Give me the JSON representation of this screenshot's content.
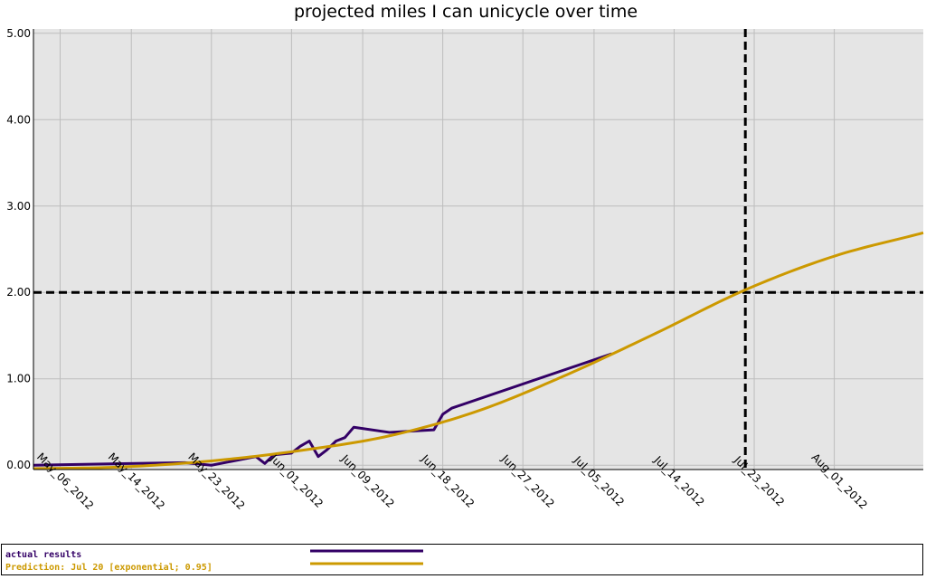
{
  "chart_data": {
    "type": "line",
    "title": "projected miles I can unicycle over time",
    "xlabel": "",
    "ylabel": "",
    "xlim": [
      "2012-05-03",
      "2012-08-11"
    ],
    "ylim": [
      -0.05,
      5.05
    ],
    "yticks": [
      0,
      1,
      2,
      3,
      4,
      5
    ],
    "ytick_labels": [
      "0.00",
      "1.00",
      "2.00",
      "3.00",
      "4.00",
      "5.00"
    ],
    "xticks": [
      "2012-05-06",
      "2012-05-14",
      "2012-05-23",
      "2012-06-01",
      "2012-06-09",
      "2012-06-18",
      "2012-06-27",
      "2012-07-05",
      "2012-07-14",
      "2012-07-23",
      "2012-08-01"
    ],
    "xtick_labels": [
      "May_06_2012",
      "May_14_2012",
      "May_23_2012",
      "Jun_01_2012",
      "Jun_09_2012",
      "Jun_18_2012",
      "Jun_27_2012",
      "Jul_05_2012",
      "Jul_14_2012",
      "Jul_23_2012",
      "Aug_01_2012"
    ],
    "grid": true,
    "background": "#e5e5e5",
    "legend_placement": "bottom",
    "series": [
      {
        "name": "actual results",
        "color": "#330066",
        "points": [
          [
            "2012-05-03",
            0.0
          ],
          [
            "2012-05-20",
            0.03
          ],
          [
            "2012-05-23",
            0.0
          ],
          [
            "2012-05-26",
            0.06
          ],
          [
            "2012-05-28",
            0.1
          ],
          [
            "2012-05-29",
            0.02
          ],
          [
            "2012-05-30",
            0.12
          ],
          [
            "2012-06-01",
            0.14
          ],
          [
            "2012-06-02",
            0.22
          ],
          [
            "2012-06-03",
            0.28
          ],
          [
            "2012-06-04",
            0.1
          ],
          [
            "2012-06-05",
            0.18
          ],
          [
            "2012-06-06",
            0.28
          ],
          [
            "2012-06-07",
            0.32
          ],
          [
            "2012-06-08",
            0.44
          ],
          [
            "2012-06-12",
            0.38
          ],
          [
            "2012-06-17",
            0.41
          ],
          [
            "2012-06-18",
            0.59
          ],
          [
            "2012-06-19",
            0.66
          ],
          [
            "2012-07-07",
            1.29
          ]
        ]
      },
      {
        "name": "Prediction: Jul 20 [exponential; 0.95]",
        "color": "#cc9900",
        "model": "exponential",
        "r2": 0.95,
        "points": [
          [
            "2012-05-03",
            -0.04
          ],
          [
            "2012-05-13",
            -0.02
          ],
          [
            "2012-05-23",
            0.05
          ],
          [
            "2012-06-02",
            0.17
          ],
          [
            "2012-06-12",
            0.34
          ],
          [
            "2012-06-22",
            0.63
          ],
          [
            "2012-07-02",
            1.05
          ],
          [
            "2012-07-12",
            1.53
          ],
          [
            "2012-07-22",
            2.03
          ],
          [
            "2012-08-01",
            2.42
          ],
          [
            "2012-08-11",
            2.69
          ]
        ]
      }
    ],
    "reference_lines": [
      {
        "axis": "y",
        "value": 2.0,
        "style": "dashed",
        "color": "#000000"
      },
      {
        "axis": "x",
        "value": "2012-07-22",
        "style": "dashed",
        "color": "#000000"
      }
    ]
  }
}
